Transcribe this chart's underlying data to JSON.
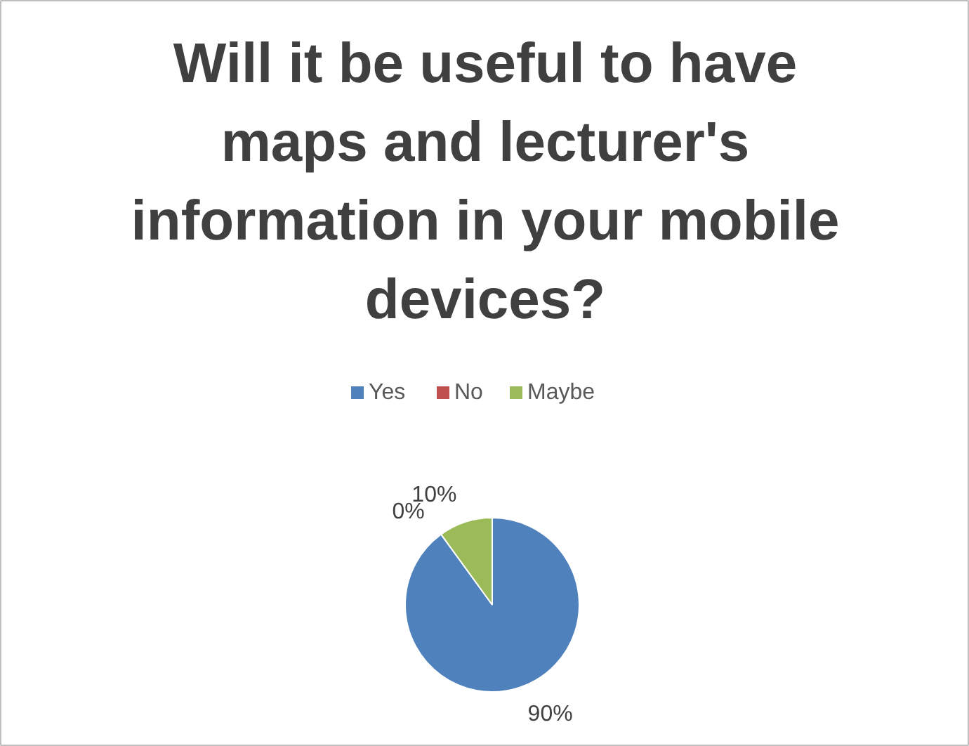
{
  "chart_data": {
    "type": "pie",
    "title": "Will it be useful to have maps and lecturer's information in your mobile devices?",
    "categories": [
      "Yes",
      "No",
      "Maybe"
    ],
    "values": [
      90,
      0,
      10
    ],
    "colors": [
      "#4f81bd",
      "#c0504d",
      "#9bbb59"
    ],
    "value_labels": [
      "90%",
      "0%",
      "10%"
    ],
    "legend": "top"
  }
}
